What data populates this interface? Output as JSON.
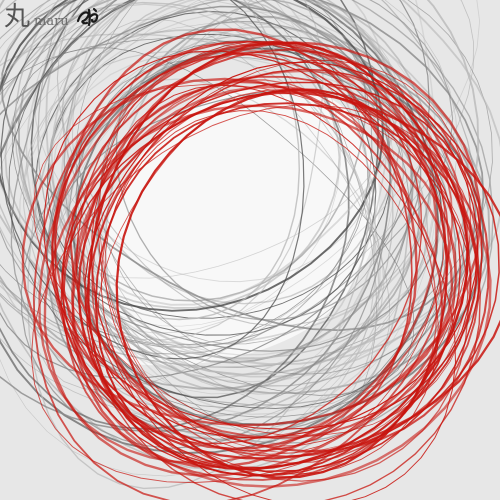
{
  "artwork": {
    "caption": {
      "kanji": "丸",
      "romaji": "maru"
    },
    "signature_seal": {
      "icon": "ink-seal-icon",
      "color": "#1a1a1a"
    },
    "palette": {
      "background": "#ffffff",
      "shadow_tone": "#e6e6e6",
      "ring_dark": "#4a4a4a",
      "ring_mid": "#8a8a8a",
      "ring_light": "#b8b8b8",
      "accent_red": "#c8150f"
    }
  }
}
